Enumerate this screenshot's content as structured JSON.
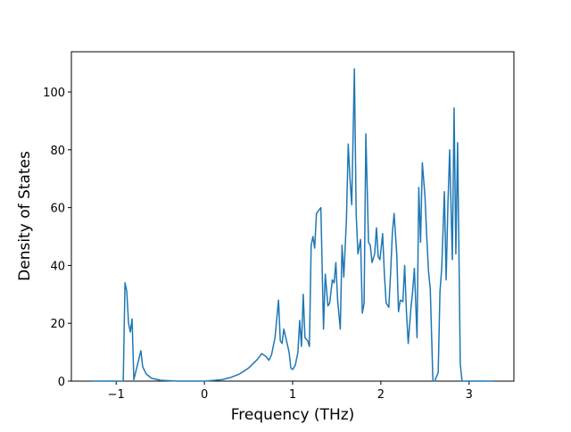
{
  "chart_data": {
    "type": "line",
    "xlabel": "Frequency (THz)",
    "ylabel": "Density of States",
    "color": "#1f77b4",
    "x": [
      -1.28,
      -0.92,
      -0.9,
      -0.88,
      -0.86,
      -0.84,
      -0.82,
      -0.8,
      -0.72,
      -0.7,
      -0.66,
      -0.6,
      -0.5,
      -0.3,
      0,
      0.2,
      0.3,
      0.4,
      0.5,
      0.6,
      0.65,
      0.7,
      0.73,
      0.76,
      0.8,
      0.84,
      0.86,
      0.88,
      0.9,
      0.93,
      0.96,
      0.98,
      1.0,
      1.03,
      1.06,
      1.08,
      1.1,
      1.12,
      1.14,
      1.17,
      1.19,
      1.21,
      1.23,
      1.25,
      1.27,
      1.32,
      1.35,
      1.37,
      1.4,
      1.42,
      1.45,
      1.47,
      1.49,
      1.51,
      1.54,
      1.56,
      1.58,
      1.61,
      1.63,
      1.65,
      1.67,
      1.7,
      1.72,
      1.74,
      1.77,
      1.79,
      1.81,
      1.83,
      1.86,
      1.88,
      1.9,
      1.93,
      1.95,
      1.97,
      1.99,
      2.02,
      2.04,
      2.06,
      2.09,
      2.11,
      2.13,
      2.15,
      2.18,
      2.2,
      2.22,
      2.25,
      2.27,
      2.29,
      2.31,
      2.34,
      2.36,
      2.38,
      2.41,
      2.43,
      2.45,
      2.47,
      2.5,
      2.52,
      2.54,
      2.56,
      2.59,
      2.61,
      2.65,
      2.67,
      2.69,
      2.72,
      2.74,
      2.76,
      2.78,
      2.81,
      2.83,
      2.85,
      2.87,
      2.9,
      2.92,
      3.28
    ],
    "values": [
      0,
      0,
      34,
      31,
      20,
      17,
      21.5,
      0.5,
      10.5,
      5,
      2.5,
      1,
      0.3,
      0,
      0,
      0.5,
      1.3,
      2.5,
      4.5,
      7.5,
      9.5,
      8.5,
      7.2,
      9,
      15,
      28,
      14,
      13,
      18,
      14,
      10,
      4.5,
      4,
      5.5,
      10,
      21,
      12,
      30,
      15,
      14,
      12,
      47,
      50,
      46,
      58,
      60,
      18,
      37,
      26,
      27,
      35,
      34,
      41,
      28,
      18,
      47,
      36,
      56,
      82,
      70,
      61,
      108,
      58,
      44,
      49,
      23.5,
      27,
      85.5,
      48,
      47,
      41,
      44,
      53,
      43,
      42,
      51,
      37,
      27,
      25.5,
      37,
      51,
      58,
      44,
      24,
      28,
      27.5,
      40,
      24,
      13,
      25,
      31,
      39,
      15,
      67,
      48,
      75.5,
      64,
      50,
      38,
      32,
      0,
      0,
      3,
      31,
      39,
      65.5,
      35,
      61,
      80,
      42,
      94.5,
      44,
      82.5,
      6,
      0,
      0
    ],
    "xlim": [
      -1.508,
      3.508
    ],
    "xticks": [
      {
        "value": -1,
        "label": "−1"
      },
      0,
      1,
      2,
      3
    ],
    "ylim": [
      0,
      113.9
    ],
    "yticks": [
      0,
      20,
      40,
      60,
      80,
      100
    ]
  }
}
